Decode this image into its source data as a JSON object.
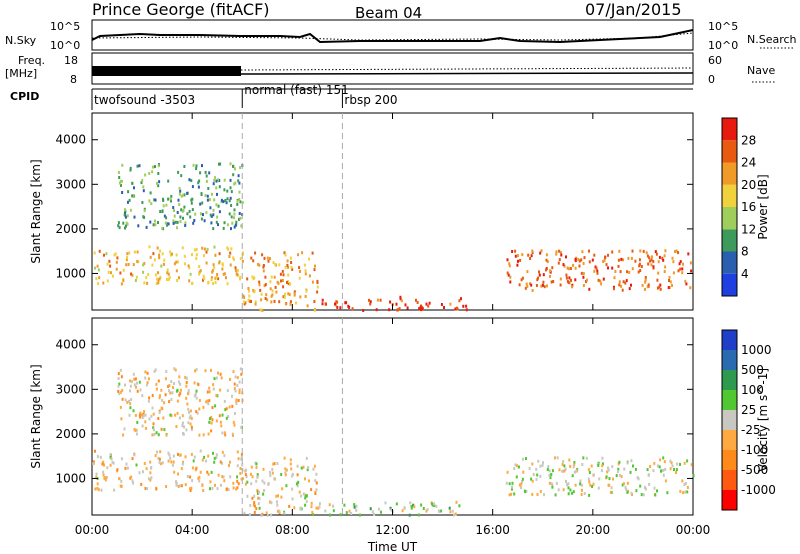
{
  "header": {
    "station": "Prince George (fitACF)",
    "beam": "Beam 04",
    "date": "07/Jan/2015"
  },
  "left_labels": {
    "nsky": "N.Sky",
    "freq": "Freq.",
    "freq_unit": "[MHz]",
    "cpid": "CPID"
  },
  "right_labels": {
    "nsearch": "N.Search",
    "nave": "Nave"
  },
  "noise_axis": {
    "left_ticks": [
      "10^5",
      "10^0"
    ],
    "right_ticks": [
      "10^5",
      "10^0"
    ]
  },
  "freq_axis": {
    "left_ticks": [
      "18",
      "8"
    ],
    "right_ticks": [
      "60",
      "0"
    ]
  },
  "cpid_segments": [
    {
      "start": 0,
      "end": 6,
      "label": "twofsound -3503"
    },
    {
      "start": 6,
      "end": 10,
      "label": "normal (fast) 151"
    },
    {
      "start": 10,
      "end": 24,
      "label": "rbsp 200"
    }
  ],
  "colors": {
    "power": [
      "#1f3fe0",
      "#2a5fb0",
      "#3d9a5a",
      "#9fcf5a",
      "#f0d23c",
      "#f09a28",
      "#e85a10",
      "#e81a10"
    ],
    "velocity": [
      "#ff0000",
      "#ff5a10",
      "#ff8a1a",
      "#ffaa40",
      "#c8c8c0",
      "#4fc832",
      "#2e9a50",
      "#2a6ab0",
      "#1f3fc8"
    ]
  },
  "chart_data": [
    {
      "type": "heatmap",
      "title": "Power",
      "ylabel": "Slant Range [km]",
      "xlim": [
        0,
        24
      ],
      "ylim": [
        180,
        4600
      ],
      "yticks": [
        1000,
        2000,
        3000,
        4000
      ],
      "colorbar": {
        "label": "Power [dB]",
        "ticks": [
          4,
          8,
          12,
          16,
          20,
          24,
          28
        ],
        "range": [
          0,
          32
        ]
      },
      "features": [
        {
          "t": [
            0,
            6
          ],
          "range_km": [
            800,
            1650
          ],
          "power_db": 20
        },
        {
          "t": [
            6,
            9
          ],
          "range_km": [
            200,
            1500
          ],
          "power_db": 22
        },
        {
          "t": [
            9,
            15
          ],
          "range_km": [
            200,
            500
          ],
          "power_db": 28
        },
        {
          "t": [
            16.5,
            24
          ],
          "range_km": [
            650,
            1550
          ],
          "power_db": 26
        },
        {
          "t": [
            1,
            6
          ],
          "range_km": [
            2000,
            3500
          ],
          "power_db": 10
        }
      ]
    },
    {
      "type": "heatmap",
      "title": "Velocity",
      "xlabel": "Time UT",
      "ylabel": "Slant Range [km]",
      "xlim": [
        0,
        24
      ],
      "ylim": [
        180,
        4600
      ],
      "xticks": [
        "00:00",
        "04:00",
        "08:00",
        "12:00",
        "16:00",
        "20:00",
        "00:00"
      ],
      "yticks": [
        1000,
        2000,
        3000,
        4000
      ],
      "colorbar": {
        "label": "Velocity [m s^-1]",
        "ticks": [
          1000,
          500,
          100,
          25,
          -25,
          -100,
          -500,
          -1000
        ],
        "range": [
          -1500,
          1500
        ]
      },
      "features": [
        {
          "t": [
            0,
            6
          ],
          "range_km": [
            750,
            1650
          ],
          "velocity_ms": -200
        },
        {
          "t": [
            6,
            9
          ],
          "range_km": [
            200,
            1500
          ],
          "velocity_ms": -150
        },
        {
          "t": [
            9,
            15
          ],
          "range_km": [
            200,
            500
          ],
          "velocity_ms": 150
        },
        {
          "t": [
            16.5,
            24
          ],
          "range_km": [
            650,
            1500
          ],
          "velocity_ms": 0
        },
        {
          "t": [
            1,
            6
          ],
          "range_km": [
            2000,
            3500
          ],
          "velocity_ms": -200
        }
      ]
    }
  ]
}
